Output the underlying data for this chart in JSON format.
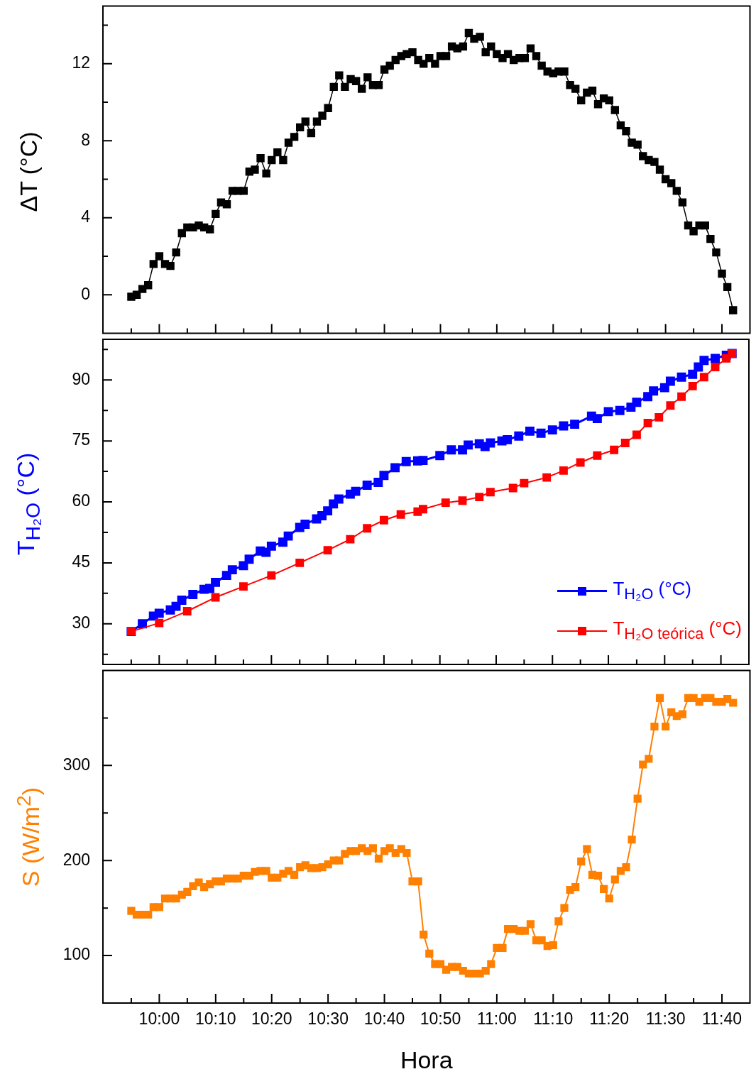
{
  "chart_data": [
    {
      "type": "line",
      "ylabel": "ΔT (°C)",
      "marker": "square",
      "line_style": "solid",
      "tick_labels": "y",
      "xlim": [
        9.833,
        11.75
      ],
      "ylim": [
        -2,
        15
      ],
      "xticks": [
        {
          "value": 9.917,
          "label": null
        },
        {
          "value": 10,
          "label": null
        },
        {
          "value": 10.083,
          "label": null
        },
        {
          "value": 10.167,
          "label": null
        },
        {
          "value": 10.25,
          "label": null
        },
        {
          "value": 10.333,
          "label": null
        },
        {
          "value": 10.417,
          "label": null
        },
        {
          "value": 10.5,
          "label": null
        },
        {
          "value": 10.583,
          "label": null
        },
        {
          "value": 10.667,
          "label": null
        },
        {
          "value": 10.75,
          "label": null
        },
        {
          "value": 10.833,
          "label": null
        },
        {
          "value": 10.917,
          "label": null
        },
        {
          "value": 11,
          "label": null
        },
        {
          "value": 11.083,
          "label": null
        },
        {
          "value": 11.167,
          "label": null
        },
        {
          "value": 11.25,
          "label": null
        },
        {
          "value": 11.333,
          "label": null
        },
        {
          "value": 11.417,
          "label": null
        },
        {
          "value": 11.5,
          "label": null
        },
        {
          "value": 11.583,
          "label": null
        },
        {
          "value": 11.667,
          "label": null
        }
      ],
      "yticks": [
        0,
        {
          "value": 2,
          "label": null
        },
        4,
        {
          "value": 6,
          "label": null
        },
        8,
        {
          "value": 10,
          "label": null
        },
        12,
        {
          "value": 14,
          "label": null
        }
      ],
      "x": [
        9.917,
        9.933,
        9.95,
        9.967,
        9.983,
        10,
        10.017,
        10.033,
        10.05,
        10.067,
        10.083,
        10.1,
        10.117,
        10.133,
        10.15,
        10.167,
        10.183,
        10.2,
        10.217,
        10.233,
        10.25,
        10.267,
        10.283,
        10.3,
        10.317,
        10.333,
        10.35,
        10.367,
        10.383,
        10.4,
        10.417,
        10.433,
        10.45,
        10.467,
        10.483,
        10.5,
        10.517,
        10.533,
        10.55,
        10.567,
        10.583,
        10.6,
        10.617,
        10.633,
        10.65,
        10.667,
        10.683,
        10.7,
        10.717,
        10.733,
        10.75,
        10.767,
        10.783,
        10.8,
        10.817,
        10.833,
        10.85,
        10.867,
        10.883,
        10.9,
        10.917,
        10.933,
        10.95,
        10.967,
        10.983,
        11,
        11.017,
        11.033,
        11.05,
        11.067,
        11.083,
        11.1,
        11.117,
        11.133,
        11.15,
        11.167,
        11.183,
        11.2,
        11.217,
        11.233,
        11.25,
        11.267,
        11.283,
        11.3,
        11.317,
        11.333,
        11.35,
        11.367,
        11.383,
        11.4,
        11.417,
        11.433,
        11.45,
        11.467,
        11.483,
        11.5,
        11.517,
        11.533,
        11.55,
        11.567,
        11.583,
        11.6,
        11.617,
        11.633,
        11.65,
        11.667,
        11.683,
        11.7
      ],
      "series": [
        {
          "color": "#000000",
          "values": [
            -0.1,
            0,
            0.3,
            0.5,
            1.6,
            2,
            1.6,
            1.5,
            2.2,
            3.2,
            3.5,
            3.5,
            3.6,
            3.5,
            3.4,
            4.2,
            4.8,
            4.7,
            5.4,
            5.4,
            5.4,
            6.4,
            6.5,
            7.1,
            6.3,
            7,
            7.4,
            7,
            7.9,
            8.2,
            8.7,
            9,
            8.4,
            9,
            9.3,
            9.7,
            10.8,
            11.4,
            10.8,
            11.2,
            11.1,
            10.7,
            11.3,
            10.9,
            10.9,
            11.7,
            11.9,
            12.2,
            12.4,
            12.5,
            12.6,
            12.2,
            12,
            12.3,
            12,
            12.4,
            12.4,
            12.9,
            12.8,
            12.9,
            13.6,
            13.3,
            13.4,
            12.6,
            12.9,
            12.5,
            12.3,
            12.5,
            12.2,
            12.3,
            12.3,
            12.8,
            12.4,
            11.9,
            11.6,
            11.5,
            11.6,
            11.6,
            10.9,
            10.7,
            10.1,
            10.5,
            10.6,
            9.9,
            10.2,
            10.1,
            9.6,
            8.8,
            8.5,
            7.9,
            7.8,
            7.2,
            7,
            6.9,
            6.5,
            6,
            5.8,
            5.4,
            4.8,
            3.6,
            3.3,
            3.6,
            3.6,
            2.9,
            2.2,
            1.1,
            0.4,
            -0.8
          ]
        }
      ]
    },
    {
      "type": "line",
      "ylabel": "T$_{H₂O}$ (°C)",
      "marker": "square",
      "line_style": "solid",
      "tick_labels": "y",
      "legend": "bottom right",
      "xlim": [
        9.833,
        11.75
      ],
      "ylim": [
        20,
        100
      ],
      "xticks": [
        {
          "value": 9.917,
          "label": null
        },
        {
          "value": 10,
          "label": null
        },
        {
          "value": 10.083,
          "label": null
        },
        {
          "value": 10.167,
          "label": null
        },
        {
          "value": 10.25,
          "label": null
        },
        {
          "value": 10.333,
          "label": null
        },
        {
          "value": 10.417,
          "label": null
        },
        {
          "value": 10.5,
          "label": null
        },
        {
          "value": 10.583,
          "label": null
        },
        {
          "value": 10.667,
          "label": null
        },
        {
          "value": 10.75,
          "label": null
        },
        {
          "value": 10.833,
          "label": null
        },
        {
          "value": 10.917,
          "label": null
        },
        {
          "value": 11,
          "label": null
        },
        {
          "value": 11.083,
          "label": null
        },
        {
          "value": 11.167,
          "label": null
        },
        {
          "value": 11.25,
          "label": null
        },
        {
          "value": 11.333,
          "label": null
        },
        {
          "value": 11.417,
          "label": null
        },
        {
          "value": 11.5,
          "label": null
        },
        {
          "value": 11.583,
          "label": null
        },
        {
          "value": 11.667,
          "label": null
        }
      ],
      "yticks": [
        {
          "value": 22.5,
          "label": null
        },
        30,
        {
          "value": 37.5,
          "label": null
        },
        45,
        {
          "value": 52.5,
          "label": null
        },
        60,
        {
          "value": 67.5,
          "label": null
        },
        75,
        {
          "value": 82.5,
          "label": null
        },
        90,
        {
          "value": 97.5,
          "label": null
        }
      ],
      "series": [
        {
          "name": "T$_{H₂O}$ (°C)",
          "color": "#0000ff",
          "x": [
            9.917,
            9.95,
            9.983,
            10,
            10.033,
            10.05,
            10.067,
            10.1,
            10.133,
            10.15,
            10.167,
            10.2,
            10.217,
            10.25,
            10.267,
            10.3,
            10.317,
            10.333,
            10.367,
            10.383,
            10.417,
            10.433,
            10.467,
            10.483,
            10.5,
            10.517,
            10.533,
            10.567,
            10.583,
            10.617,
            10.65,
            10.667,
            10.7,
            10.733,
            10.767,
            10.783,
            10.833,
            10.867,
            10.9,
            10.917,
            10.95,
            10.967,
            10.983,
            11.017,
            11.033,
            11.067,
            11.1,
            11.133,
            11.167,
            11.2,
            11.233,
            11.283,
            11.3,
            11.333,
            11.367,
            11.4,
            11.417,
            11.45,
            11.467,
            11.5,
            11.517,
            11.55,
            11.583,
            11.6,
            11.617,
            11.65,
            11.683,
            11.7
          ],
          "values": [
            28.1,
            30,
            31.9,
            32.6,
            33.4,
            34.3,
            35.8,
            37.2,
            38.5,
            38.7,
            40.2,
            41.9,
            43.3,
            44.3,
            45.9,
            47.9,
            47.6,
            49.1,
            50.1,
            51.6,
            53.7,
            54.5,
            55.8,
            56.6,
            57.8,
            59.5,
            60.7,
            61.9,
            62.6,
            64.1,
            64.8,
            66.5,
            68.4,
            69.9,
            70.1,
            70.2,
            71.4,
            72.8,
            72.8,
            74,
            74.3,
            73.6,
            74.5,
            75,
            75.3,
            76.2,
            77.4,
            76.9,
            77.7,
            78.7,
            79.1,
            81.1,
            80.5,
            82.2,
            82.5,
            83.3,
            84.5,
            85.9,
            87.3,
            88.1,
            89.7,
            90.7,
            91.4,
            93.2,
            94.8,
            95.3,
            96.1,
            96.5
          ]
        },
        {
          "name": "T$_{H₂O teórica}$ (°C)",
          "color": "#ff0000",
          "x": [
            9.917,
            10,
            10.083,
            10.167,
            10.25,
            10.333,
            10.417,
            10.5,
            10.567,
            10.617,
            10.667,
            10.717,
            10.767,
            10.783,
            10.85,
            10.9,
            10.95,
            10.983,
            11.05,
            11.083,
            11.15,
            11.2,
            11.25,
            11.3,
            11.35,
            11.383,
            11.417,
            11.45,
            11.483,
            11.517,
            11.55,
            11.583,
            11.617,
            11.65,
            11.683,
            11.7
          ],
          "values": [
            28.1,
            30.2,
            33.1,
            36.5,
            39.2,
            41.9,
            45,
            48.1,
            50.8,
            53.5,
            55.5,
            56.9,
            57.6,
            58.2,
            59.8,
            60.3,
            61.2,
            62.4,
            63.4,
            64.6,
            66,
            67.7,
            69.7,
            71.4,
            72.8,
            74.5,
            76.5,
            79.4,
            80.8,
            83.7,
            85.9,
            88.5,
            90.7,
            93.2,
            95.3,
            96.5
          ]
        }
      ]
    },
    {
      "type": "line",
      "xlabel": "Hora",
      "ylabel": "S (W/m$^{2}$)",
      "marker": "square",
      "line_style": "solid",
      "xlim": [
        9.833,
        11.75
      ],
      "ylim": [
        50,
        400
      ],
      "xticks": [
        {
          "value": 9.917,
          "label": null
        },
        {
          "value": 10,
          "label": "10:00"
        },
        {
          "value": 10.083,
          "label": null
        },
        {
          "value": 10.167,
          "label": "10:10"
        },
        {
          "value": 10.25,
          "label": null
        },
        {
          "value": 10.333,
          "label": "10:20"
        },
        {
          "value": 10.417,
          "label": null
        },
        {
          "value": 10.5,
          "label": "10:30"
        },
        {
          "value": 10.583,
          "label": null
        },
        {
          "value": 10.667,
          "label": "10:40"
        },
        {
          "value": 10.75,
          "label": null
        },
        {
          "value": 10.833,
          "label": "10:50"
        },
        {
          "value": 10.917,
          "label": null
        },
        {
          "value": 11,
          "label": "11:00"
        },
        {
          "value": 11.083,
          "label": null
        },
        {
          "value": 11.167,
          "label": "11:10"
        },
        {
          "value": 11.25,
          "label": null
        },
        {
          "value": 11.333,
          "label": "11:20"
        },
        {
          "value": 11.417,
          "label": null
        },
        {
          "value": 11.5,
          "label": "11:30"
        },
        {
          "value": 11.583,
          "label": null
        },
        {
          "value": 11.667,
          "label": "11:40"
        }
      ],
      "yticks": [
        100,
        {
          "value": 150,
          "label": null
        },
        200,
        {
          "value": 250,
          "label": null
        },
        300,
        {
          "value": 350,
          "label": null
        }
      ],
      "x": [
        9.917,
        9.933,
        9.95,
        9.967,
        9.983,
        10,
        10.017,
        10.033,
        10.05,
        10.067,
        10.083,
        10.1,
        10.117,
        10.133,
        10.15,
        10.167,
        10.183,
        10.2,
        10.217,
        10.233,
        10.25,
        10.267,
        10.283,
        10.3,
        10.317,
        10.333,
        10.35,
        10.367,
        10.383,
        10.4,
        10.417,
        10.433,
        10.45,
        10.467,
        10.483,
        10.5,
        10.517,
        10.533,
        10.55,
        10.567,
        10.583,
        10.6,
        10.617,
        10.633,
        10.65,
        10.667,
        10.683,
        10.7,
        10.717,
        10.733,
        10.75,
        10.767,
        10.783,
        10.8,
        10.817,
        10.833,
        10.85,
        10.867,
        10.883,
        10.9,
        10.917,
        10.933,
        10.95,
        10.967,
        10.983,
        11,
        11.017,
        11.033,
        11.05,
        11.067,
        11.083,
        11.1,
        11.117,
        11.133,
        11.15,
        11.167,
        11.183,
        11.2,
        11.217,
        11.233,
        11.25,
        11.267,
        11.283,
        11.3,
        11.317,
        11.333,
        11.35,
        11.367,
        11.383,
        11.4,
        11.417,
        11.433,
        11.45,
        11.467,
        11.483,
        11.5,
        11.517,
        11.533,
        11.55,
        11.567,
        11.583,
        11.6,
        11.617,
        11.633,
        11.65,
        11.667,
        11.683,
        11.7
      ],
      "series": [
        {
          "color": "#ff8000",
          "values": [
            147,
            143,
            143,
            143,
            151,
            151,
            160,
            160,
            160,
            164,
            167,
            173,
            177,
            172,
            175,
            178,
            178,
            181,
            181,
            181,
            184,
            184,
            188,
            189,
            189,
            182,
            182,
            186,
            189,
            185,
            193,
            195,
            192,
            192,
            193,
            196,
            200,
            200,
            207,
            210,
            210,
            213,
            210,
            213,
            202,
            210,
            213,
            208,
            212,
            208,
            178,
            178,
            122,
            102,
            91,
            91,
            85,
            88,
            88,
            84,
            81,
            81,
            81,
            84,
            91,
            108,
            108,
            128,
            128,
            126,
            126,
            133,
            116,
            116,
            110,
            111,
            136,
            150,
            169,
            172,
            199,
            212,
            185,
            184,
            170,
            160,
            180,
            189,
            193,
            222,
            265,
            301,
            307,
            341,
            371,
            341,
            356,
            352,
            354,
            371,
            371,
            367,
            371,
            371,
            367,
            367,
            370,
            366
          ]
        }
      ]
    }
  ]
}
